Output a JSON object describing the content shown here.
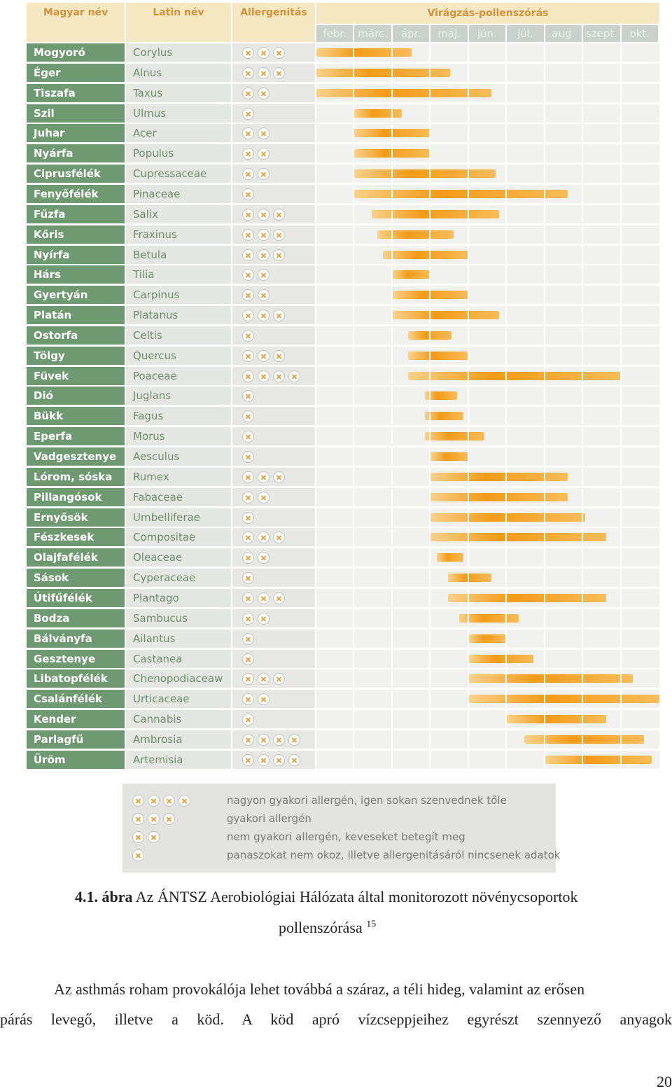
{
  "chart_data": {
    "type": "table",
    "title": "Virágzás-pollenszórás",
    "columns": {
      "hungarian": "Magyar név",
      "latin": "Latin név",
      "allergen": "Allergenitás",
      "season": "Virágzás-pollenszórás"
    },
    "months": [
      "febr.",
      "márc.",
      "ápr.",
      "máj.",
      "jún.",
      "júl.",
      "aug.",
      "szept.",
      "okt."
    ],
    "month_scale_note": "start/end expressed in months from beginning of February (0 = Feb 1, 9 = end of October)",
    "plants": [
      {
        "hu": "Mogyoró",
        "la": "Corylus",
        "allergen": 3,
        "start": 0.0,
        "end": 2.5
      },
      {
        "hu": "Éger",
        "la": "Alnus",
        "allergen": 3,
        "start": 0.0,
        "end": 3.5
      },
      {
        "hu": "Tiszafa",
        "la": "Taxus",
        "allergen": 2,
        "start": 0.0,
        "end": 4.6
      },
      {
        "hu": "Szil",
        "la": "Ulmus",
        "allergen": 1,
        "start": 1.0,
        "end": 2.25
      },
      {
        "hu": "Juhar",
        "la": "Acer",
        "allergen": 2,
        "start": 1.0,
        "end": 3.0
      },
      {
        "hu": "Nyárfa",
        "la": "Populus",
        "allergen": 2,
        "start": 1.0,
        "end": 3.0
      },
      {
        "hu": "Ciprusfélék",
        "la": "Cupressaceae",
        "allergen": 2,
        "start": 1.0,
        "end": 4.7
      },
      {
        "hu": "Fenyőfélék",
        "la": "Pinaceae",
        "allergen": 1,
        "start": 1.0,
        "end": 6.6
      },
      {
        "hu": "Fűzfa",
        "la": "Salix",
        "allergen": 3,
        "start": 1.45,
        "end": 4.8
      },
      {
        "hu": "Kőris",
        "la": "Fraxinus",
        "allergen": 3,
        "start": 1.6,
        "end": 3.6
      },
      {
        "hu": "Nyírfa",
        "la": "Betula",
        "allergen": 3,
        "start": 1.75,
        "end": 4.0
      },
      {
        "hu": "Hárs",
        "la": "Tilia",
        "allergen": 2,
        "start": 2.0,
        "end": 3.0
      },
      {
        "hu": "Gyertyán",
        "la": "Carpinus",
        "allergen": 2,
        "start": 2.0,
        "end": 4.0
      },
      {
        "hu": "Platán",
        "la": "Platanus",
        "allergen": 3,
        "start": 2.0,
        "end": 4.8
      },
      {
        "hu": "Ostorfa",
        "la": "Celtis",
        "allergen": 1,
        "start": 2.4,
        "end": 3.55
      },
      {
        "hu": "Tölgy",
        "la": "Quercus",
        "allergen": 3,
        "start": 2.4,
        "end": 4.0
      },
      {
        "hu": "Füvek",
        "la": "Poaceae",
        "allergen": 4,
        "start": 2.4,
        "end": 8.0
      },
      {
        "hu": "Dió",
        "la": "Juglans",
        "allergen": 1,
        "start": 2.85,
        "end": 3.7
      },
      {
        "hu": "Bükk",
        "la": "Fagus",
        "allergen": 1,
        "start": 2.85,
        "end": 3.85
      },
      {
        "hu": "Eperfa",
        "la": "Morus",
        "allergen": 1,
        "start": 2.85,
        "end": 4.4
      },
      {
        "hu": "Vadgesztenye",
        "la": "Aesculus",
        "allergen": 1,
        "start": 3.0,
        "end": 4.0
      },
      {
        "hu": "Lórom, sóska",
        "la": "Rumex",
        "allergen": 3,
        "start": 3.0,
        "end": 6.6
      },
      {
        "hu": "Pillangósok",
        "la": "Fabaceae",
        "allergen": 2,
        "start": 3.0,
        "end": 6.6
      },
      {
        "hu": "Ernyősök",
        "la": "Umbelliferae",
        "allergen": 1,
        "start": 3.0,
        "end": 7.05
      },
      {
        "hu": "Fészkesek",
        "la": "Compositae",
        "allergen": 3,
        "start": 3.0,
        "end": 7.6
      },
      {
        "hu": "Olajfafélék",
        "la": "Oleaceae",
        "allergen": 2,
        "start": 3.15,
        "end": 3.85
      },
      {
        "hu": "Sások",
        "la": "Cyperaceae",
        "allergen": 1,
        "start": 3.45,
        "end": 4.6
      },
      {
        "hu": "Útifűfélék",
        "la": "Plantago",
        "allergen": 3,
        "start": 3.45,
        "end": 7.6
      },
      {
        "hu": "Bodza",
        "la": "Sambucus",
        "allergen": 2,
        "start": 3.75,
        "end": 5.3
      },
      {
        "hu": "Bálványfa",
        "la": "Ailantus",
        "allergen": 1,
        "start": 4.0,
        "end": 5.0
      },
      {
        "hu": "Gesztenye",
        "la": "Castanea",
        "allergen": 1,
        "start": 4.0,
        "end": 5.7
      },
      {
        "hu": "Libatopfélék",
        "la": "Chenopodiaceaw",
        "allergen": 3,
        "start": 4.0,
        "end": 8.3
      },
      {
        "hu": "Csalánfélék",
        "la": "Urticaceae",
        "allergen": 2,
        "start": 4.0,
        "end": 9.0
      },
      {
        "hu": "Kender",
        "la": "Cannabis",
        "allergen": 1,
        "start": 5.0,
        "end": 7.6
      },
      {
        "hu": "Parlagfű",
        "la": "Ambrosia",
        "allergen": 4,
        "start": 5.45,
        "end": 8.6
      },
      {
        "hu": "Üröm",
        "la": "Artemisia",
        "allergen": 4,
        "start": 6.0,
        "end": 8.8
      }
    ],
    "legend": [
      {
        "count": 4,
        "text": "nagyon gyakori allergén, igen sokan szenvednek tőle"
      },
      {
        "count": 3,
        "text": "gyakori allergén"
      },
      {
        "count": 2,
        "text": "nem gyakori allergén, keveseket betegít meg"
      },
      {
        "count": 1,
        "text": "panaszokat nem okoz, illetve allergenitásáról nincsenek adatok"
      }
    ]
  },
  "caption": {
    "label": "4.1. ábra",
    "line1": "Az ÁNTSZ Aerobiológiai Hálózata által monitorozott növénycsoportok",
    "line2": "pollenszórása",
    "footnote_ref": "15"
  },
  "body": {
    "line1": "Az asthmás roham provokálója lehet továbbá a száraz, a téli hideg, valamint az erősen",
    "line2": "párás levegő, illetve a köd. A köd apró vízcseppjeihez egyrészt szennyező anyagok"
  },
  "page_number": "20"
}
